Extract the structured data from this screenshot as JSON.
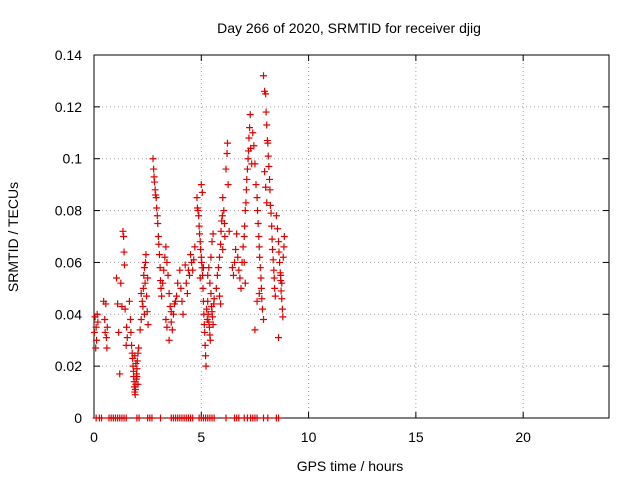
{
  "chart_data": {
    "type": "scatter",
    "title": "Day 266 of 2020, SRMTID for receiver djig",
    "xlabel": "GPS time / hours",
    "ylabel": "SRMTID / TECUs",
    "xlim": [
      0,
      24
    ],
    "ylim": [
      0,
      0.14
    ],
    "xticks": [
      "0",
      "5",
      "10",
      "15",
      "20"
    ],
    "yticks": [
      "0",
      "0.02",
      "0.04",
      "0.06",
      "0.08",
      "0.1",
      "0.12",
      "0.14"
    ],
    "grid": true,
    "marker": "+",
    "color": "#e00000",
    "series": [
      {
        "points": [
          [
            0.02,
            0.033
          ],
          [
            0.05,
            0.039
          ],
          [
            0.08,
            0.027
          ],
          [
            0.1,
            0.035
          ],
          [
            0.12,
            0.03
          ],
          [
            0.15,
            0.04
          ],
          [
            0.18,
            0.037
          ],
          [
            0.45,
            0.045
          ],
          [
            0.5,
            0.038
          ],
          [
            0.52,
            0.033
          ],
          [
            0.55,
            0.044
          ],
          [
            0.58,
            0.031
          ],
          [
            0.6,
            0.027
          ],
          [
            0.62,
            0.035
          ],
          [
            1.05,
            0.054
          ],
          [
            1.1,
            0.044
          ],
          [
            1.15,
            0.033
          ],
          [
            1.2,
            0.017
          ],
          [
            1.25,
            0.052
          ],
          [
            1.3,
            0.043
          ],
          [
            1.35,
            0.072
          ],
          [
            1.38,
            0.07
          ],
          [
            1.4,
            0.064
          ],
          [
            1.42,
            0.059
          ],
          [
            1.45,
            0.042
          ],
          [
            1.5,
            0.028
          ],
          [
            1.52,
            0.035
          ],
          [
            1.55,
            0.031
          ],
          [
            1.65,
            0.045
          ],
          [
            1.7,
            0.038
          ],
          [
            1.72,
            0.033
          ],
          [
            1.75,
            0.028
          ],
          [
            1.78,
            0.025
          ],
          [
            1.8,
            0.023
          ],
          [
            1.82,
            0.02
          ],
          [
            1.84,
            0.018
          ],
          [
            1.85,
            0.016
          ],
          [
            1.87,
            0.014
          ],
          [
            1.88,
            0.012
          ],
          [
            1.9,
            0.01
          ],
          [
            1.92,
            0.009
          ],
          [
            1.93,
            0.011
          ],
          [
            1.95,
            0.013
          ],
          [
            1.97,
            0.015
          ],
          [
            1.98,
            0.017
          ],
          [
            2.0,
            0.019
          ],
          [
            2.02,
            0.022
          ],
          [
            2.05,
            0.025
          ],
          [
            2.08,
            0.027
          ],
          [
            1.9,
            0.024
          ],
          [
            1.95,
            0.021
          ],
          [
            2.0,
            0.016
          ],
          [
            2.05,
            0.013
          ],
          [
            2.15,
            0.034
          ],
          [
            2.2,
            0.038
          ],
          [
            2.25,
            0.045
          ],
          [
            2.3,
            0.05
          ],
          [
            2.32,
            0.055
          ],
          [
            2.35,
            0.058
          ],
          [
            2.38,
            0.052
          ],
          [
            2.4,
            0.06
          ],
          [
            2.42,
            0.063
          ],
          [
            2.45,
            0.047
          ],
          [
            2.48,
            0.041
          ],
          [
            2.5,
            0.054
          ],
          [
            2.52,
            0.036
          ],
          [
            2.2,
            0.048
          ],
          [
            2.28,
            0.043
          ],
          [
            2.35,
            0.04
          ],
          [
            2.75,
            0.1
          ],
          [
            2.78,
            0.096
          ],
          [
            2.8,
            0.093
          ],
          [
            2.82,
            0.091
          ],
          [
            2.85,
            0.088
          ],
          [
            2.87,
            0.086
          ],
          [
            2.9,
            0.085
          ],
          [
            2.92,
            0.081
          ],
          [
            2.95,
            0.078
          ],
          [
            2.97,
            0.075
          ],
          [
            3.0,
            0.07
          ],
          [
            3.02,
            0.067
          ],
          [
            3.05,
            0.063
          ],
          [
            3.08,
            0.058
          ],
          [
            3.1,
            0.053
          ],
          [
            3.12,
            0.05
          ],
          [
            3.15,
            0.047
          ],
          [
            3.2,
            0.052
          ],
          [
            3.25,
            0.057
          ],
          [
            3.3,
            0.062
          ],
          [
            3.35,
            0.066
          ],
          [
            3.4,
            0.06
          ],
          [
            3.45,
            0.055
          ],
          [
            3.5,
            0.048
          ],
          [
            3.55,
            0.043
          ],
          [
            3.6,
            0.037
          ],
          [
            3.65,
            0.034
          ],
          [
            3.7,
            0.04
          ],
          [
            3.75,
            0.044
          ],
          [
            3.8,
            0.045
          ],
          [
            3.35,
            0.038
          ],
          [
            3.4,
            0.035
          ],
          [
            3.5,
            0.03
          ],
          [
            3.6,
            0.041
          ],
          [
            3.85,
            0.047
          ],
          [
            3.9,
            0.052
          ],
          [
            4.0,
            0.057
          ],
          [
            4.05,
            0.05
          ],
          [
            4.1,
            0.045
          ],
          [
            4.15,
            0.04
          ],
          [
            4.25,
            0.059
          ],
          [
            4.3,
            0.052
          ],
          [
            4.35,
            0.048
          ],
          [
            4.4,
            0.057
          ],
          [
            4.45,
            0.055
          ],
          [
            4.5,
            0.063
          ],
          [
            4.55,
            0.06
          ],
          [
            4.6,
            0.057
          ],
          [
            4.65,
            0.061
          ],
          [
            4.7,
            0.066
          ],
          [
            4.8,
            0.085
          ],
          [
            4.82,
            0.081
          ],
          [
            4.85,
            0.08
          ],
          [
            4.88,
            0.078
          ],
          [
            4.9,
            0.074
          ],
          [
            4.92,
            0.071
          ],
          [
            4.95,
            0.068
          ],
          [
            4.97,
            0.065
          ],
          [
            5.0,
            0.062
          ],
          [
            5.02,
            0.06
          ],
          [
            5.04,
            0.058
          ],
          [
            5.06,
            0.055
          ],
          [
            5.08,
            0.05
          ],
          [
            5.1,
            0.045
          ],
          [
            5.12,
            0.04
          ],
          [
            5.14,
            0.036
          ],
          [
            5.16,
            0.033
          ],
          [
            5.18,
            0.028
          ],
          [
            5.2,
            0.024
          ],
          [
            5.22,
            0.02
          ],
          [
            5.0,
            0.09
          ],
          [
            5.05,
            0.087
          ],
          [
            4.95,
            0.054
          ],
          [
            5.1,
            0.058
          ],
          [
            5.25,
            0.042
          ],
          [
            5.28,
            0.038
          ],
          [
            5.3,
            0.045
          ],
          [
            5.32,
            0.04
          ],
          [
            5.35,
            0.037
          ],
          [
            5.38,
            0.035
          ],
          [
            5.4,
            0.032
          ],
          [
            5.42,
            0.03
          ],
          [
            5.45,
            0.048
          ],
          [
            5.48,
            0.043
          ],
          [
            5.5,
            0.041
          ],
          [
            5.52,
            0.039
          ],
          [
            5.55,
            0.036
          ],
          [
            5.58,
            0.044
          ],
          [
            5.6,
            0.046
          ],
          [
            5.3,
            0.055
          ],
          [
            5.35,
            0.058
          ],
          [
            5.4,
            0.052
          ],
          [
            5.45,
            0.062
          ],
          [
            5.5,
            0.068
          ],
          [
            5.55,
            0.071
          ],
          [
            5.7,
            0.05
          ],
          [
            5.75,
            0.055
          ],
          [
            5.8,
            0.058
          ],
          [
            5.85,
            0.062
          ],
          [
            5.9,
            0.067
          ],
          [
            5.92,
            0.072
          ],
          [
            5.95,
            0.076
          ],
          [
            5.98,
            0.078
          ],
          [
            6.0,
            0.085
          ],
          [
            6.05,
            0.08
          ],
          [
            6.08,
            0.075
          ],
          [
            6.1,
            0.07
          ],
          [
            6.15,
            0.096
          ],
          [
            6.2,
            0.102
          ],
          [
            6.22,
            0.106
          ],
          [
            6.25,
            0.09
          ],
          [
            6.3,
            0.072
          ],
          [
            5.85,
            0.047
          ],
          [
            5.9,
            0.044
          ],
          [
            6.0,
            0.065
          ],
          [
            6.45,
            0.058
          ],
          [
            6.5,
            0.055
          ],
          [
            6.55,
            0.06
          ],
          [
            6.6,
            0.065
          ],
          [
            6.65,
            0.071
          ],
          [
            6.7,
            0.062
          ],
          [
            6.75,
            0.057
          ],
          [
            6.8,
            0.054
          ],
          [
            6.85,
            0.05
          ],
          [
            6.9,
            0.06
          ],
          [
            6.95,
            0.066
          ],
          [
            7.0,
            0.07
          ],
          [
            7.02,
            0.074
          ],
          [
            7.05,
            0.08
          ],
          [
            7.08,
            0.083
          ],
          [
            7.1,
            0.088
          ],
          [
            7.12,
            0.092
          ],
          [
            7.15,
            0.096
          ],
          [
            7.18,
            0.1
          ],
          [
            7.2,
            0.103
          ],
          [
            7.22,
            0.108
          ],
          [
            7.25,
            0.112
          ],
          [
            7.28,
            0.117
          ],
          [
            7.3,
            0.104
          ],
          [
            7.35,
            0.098
          ],
          [
            7.0,
            0.06
          ],
          [
            7.05,
            0.052
          ],
          [
            7.4,
            0.11
          ],
          [
            7.45,
            0.105
          ],
          [
            7.5,
            0.098
          ],
          [
            7.55,
            0.09
          ],
          [
            7.6,
            0.085
          ],
          [
            7.62,
            0.08
          ],
          [
            7.65,
            0.075
          ],
          [
            7.68,
            0.07
          ],
          [
            7.7,
            0.066
          ],
          [
            7.72,
            0.062
          ],
          [
            7.75,
            0.058
          ],
          [
            7.78,
            0.054
          ],
          [
            7.8,
            0.05
          ],
          [
            7.82,
            0.046
          ],
          [
            7.85,
            0.042
          ],
          [
            7.9,
            0.038
          ],
          [
            7.5,
            0.034
          ],
          [
            7.6,
            0.045
          ],
          [
            7.7,
            0.048
          ],
          [
            7.9,
            0.132
          ],
          [
            7.95,
            0.126
          ],
          [
            8.0,
            0.125
          ],
          [
            8.02,
            0.118
          ],
          [
            8.05,
            0.113
          ],
          [
            8.08,
            0.107
          ],
          [
            8.1,
            0.106
          ],
          [
            8.12,
            0.101
          ],
          [
            8.15,
            0.097
          ],
          [
            8.18,
            0.092
          ],
          [
            8.2,
            0.088
          ],
          [
            8.22,
            0.082
          ],
          [
            8.25,
            0.079
          ],
          [
            8.28,
            0.074
          ],
          [
            8.3,
            0.069
          ],
          [
            8.32,
            0.065
          ],
          [
            8.35,
            0.061
          ],
          [
            8.38,
            0.057
          ],
          [
            8.4,
            0.054
          ],
          [
            8.42,
            0.05
          ],
          [
            8.45,
            0.047
          ],
          [
            7.95,
            0.095
          ],
          [
            8.0,
            0.089
          ],
          [
            8.05,
            0.083
          ],
          [
            8.5,
            0.078
          ],
          [
            8.55,
            0.073
          ],
          [
            8.6,
            0.068
          ],
          [
            8.62,
            0.064
          ],
          [
            8.65,
            0.06
          ],
          [
            8.68,
            0.056
          ],
          [
            8.7,
            0.053
          ],
          [
            8.72,
            0.049
          ],
          [
            8.75,
            0.046
          ],
          [
            8.78,
            0.042
          ],
          [
            8.8,
            0.039
          ],
          [
            8.82,
            0.062
          ],
          [
            8.85,
            0.066
          ],
          [
            8.87,
            0.07
          ],
          [
            8.6,
            0.031
          ],
          [
            8.7,
            0.055
          ],
          [
            8.75,
            0.052
          ]
        ]
      },
      {
        "points": [
          [
            0.1,
            0
          ],
          [
            0.25,
            0
          ],
          [
            0.35,
            0
          ],
          [
            0.7,
            0
          ],
          [
            0.8,
            0
          ],
          [
            0.9,
            0
          ],
          [
            1.0,
            0
          ],
          [
            1.1,
            0
          ],
          [
            1.2,
            0
          ],
          [
            1.3,
            0
          ],
          [
            1.4,
            0
          ],
          [
            1.5,
            0
          ],
          [
            2.0,
            0
          ],
          [
            2.1,
            0
          ],
          [
            2.5,
            0
          ],
          [
            2.6,
            0
          ],
          [
            2.7,
            0
          ],
          [
            3.1,
            0
          ],
          [
            3.6,
            0
          ],
          [
            3.7,
            0
          ],
          [
            3.8,
            0
          ],
          [
            3.9,
            0
          ],
          [
            4.0,
            0
          ],
          [
            4.1,
            0
          ],
          [
            4.2,
            0
          ],
          [
            4.3,
            0
          ],
          [
            4.4,
            0
          ],
          [
            4.5,
            0
          ],
          [
            4.6,
            0
          ],
          [
            4.9,
            0
          ],
          [
            5.0,
            0
          ],
          [
            5.1,
            0
          ],
          [
            5.2,
            0
          ],
          [
            5.3,
            0
          ],
          [
            5.4,
            0
          ],
          [
            5.5,
            0
          ],
          [
            5.6,
            0
          ],
          [
            6.15,
            0
          ],
          [
            6.55,
            0
          ],
          [
            6.65,
            0
          ],
          [
            6.75,
            0
          ],
          [
            7.0,
            0
          ],
          [
            7.15,
            0
          ],
          [
            7.3,
            0
          ],
          [
            7.4,
            0
          ],
          [
            7.5,
            0
          ],
          [
            7.6,
            0
          ],
          [
            7.9,
            0
          ],
          [
            8.1,
            0
          ],
          [
            8.5,
            0
          ],
          [
            8.6,
            0
          ]
        ]
      }
    ]
  }
}
